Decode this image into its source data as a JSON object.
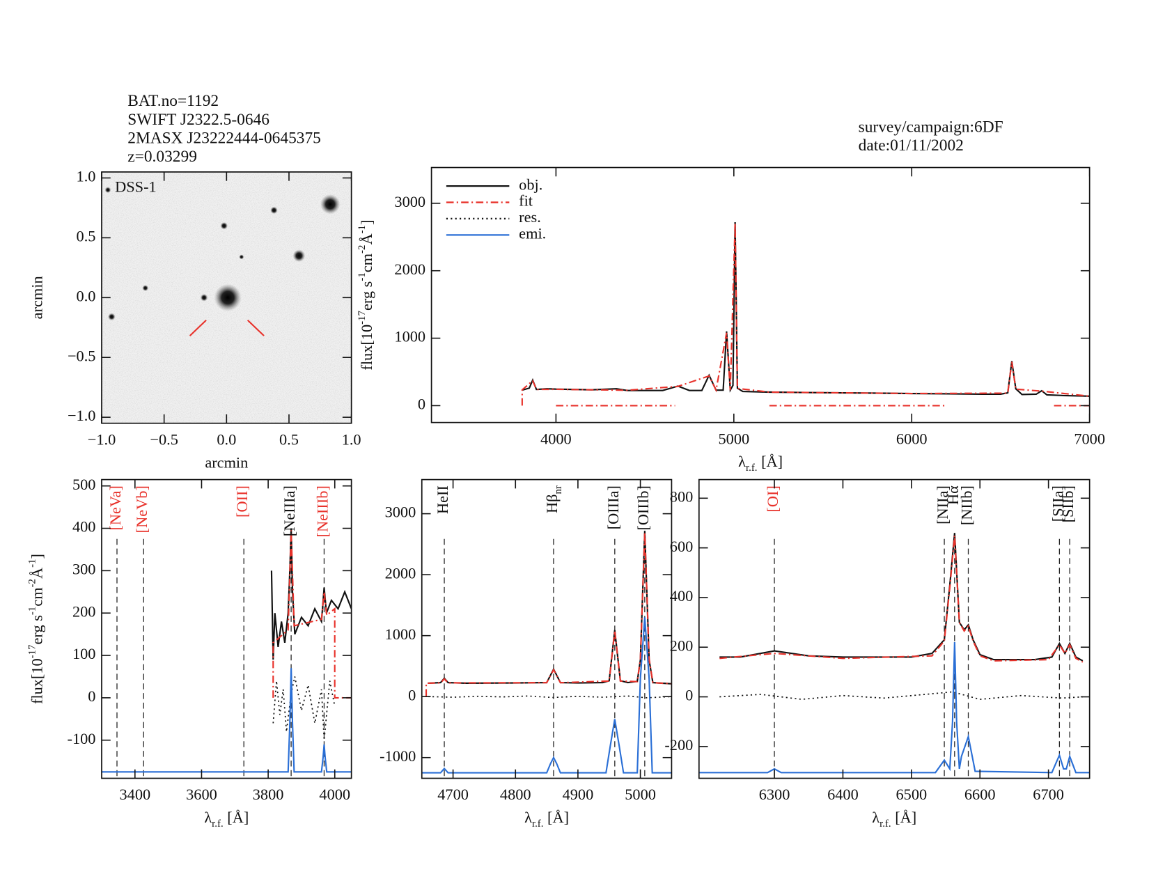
{
  "header": {
    "left": [
      "BAT.no=1192",
      "SWIFT J2322.5-0646",
      "2MASX J23222444-0645375",
      "z=0.03299"
    ],
    "right": [
      "survey/campaign:6DF",
      "date:01/11/2002"
    ]
  },
  "chart_data": [
    {
      "type": "image",
      "label": "DSS-1",
      "xlabel": "arcmin",
      "ylabel": "arcmin",
      "xlim": [
        -1,
        1
      ],
      "ylim": [
        -1.05,
        1.05
      ],
      "xticks": [
        {
          "value": -1,
          "label": "−1.0"
        },
        {
          "value": -0.5,
          "label": "−0.5"
        },
        {
          "value": 0,
          "label": "0.0"
        },
        0.5,
        {
          "value": 1,
          "label": "1.0"
        }
      ],
      "yticks": [
        {
          "value": -1,
          "label": "−1.0"
        },
        {
          "value": -0.5,
          "label": "−0.5"
        },
        {
          "value": 0,
          "label": "0.0"
        },
        0.5,
        {
          "value": 1,
          "label": "1.0"
        }
      ],
      "sources": [
        {
          "x": 0.01,
          "y": 0.0,
          "r": 0.11
        },
        {
          "x": 0.83,
          "y": 0.78,
          "r": 0.08
        },
        {
          "x": 0.58,
          "y": 0.35,
          "r": 0.05
        },
        {
          "x": -0.02,
          "y": 0.6,
          "r": 0.03
        },
        {
          "x": 0.38,
          "y": 0.73,
          "r": 0.03
        },
        {
          "x": 0.12,
          "y": 0.34,
          "r": 0.02
        },
        {
          "x": -0.65,
          "y": 0.08,
          "r": 0.025
        },
        {
          "x": -0.92,
          "y": -0.16,
          "r": 0.03
        },
        {
          "x": -0.95,
          "y": 0.9,
          "r": 0.025
        },
        {
          "x": -0.18,
          "y": 0.0,
          "r": 0.03
        }
      ]
    },
    {
      "type": "line",
      "xlabel_parts": [
        {
          "t": "λ"
        },
        {
          "t": "r.f.",
          "sub": true
        },
        {
          "t": " [Å]"
        }
      ],
      "ylabel_parts": [
        {
          "t": "flux[10"
        },
        {
          "t": "-17",
          "sup": true
        },
        {
          "t": "erg s"
        },
        {
          "t": "-1",
          "sup": true
        },
        {
          "t": "cm"
        },
        {
          "t": "-2",
          "sup": true
        },
        {
          "t": "Å"
        },
        {
          "t": "-1",
          "sup": true
        },
        {
          "t": "]"
        }
      ],
      "xlim": [
        3300,
        7000
      ],
      "xticks": [
        4000,
        5000,
        6000,
        7000
      ],
      "ylim": [
        -250,
        3530
      ],
      "yticks": [
        0,
        1000,
        2000,
        3000
      ],
      "legend_position": "top-left",
      "legend": [
        {
          "name": "obj.",
          "color": "#111111",
          "style": "solid"
        },
        {
          "name": "fit",
          "color": "#e8322b",
          "style": "dashdot"
        },
        {
          "name": "res.",
          "color": "#111111",
          "style": "dotted"
        },
        {
          "name": "emi.",
          "color": "#2a6fd6",
          "style": "solid"
        }
      ],
      "series": [
        {
          "color": "#111111",
          "style": "solid",
          "x": [
            3810,
            3850,
            3869,
            3890,
            3950,
            4000,
            4100,
            4200,
            4340,
            4400,
            4500,
            4600,
            4686,
            4750,
            4820,
            4861,
            4900,
            4940,
            4959,
            4980,
            4995,
            5007,
            5020,
            5050,
            5200,
            5400,
            5600,
            5800,
            6000,
            6200,
            6400,
            6500,
            6540,
            6563,
            6585,
            6620,
            6700,
            6731,
            6760,
            6850,
            7000
          ],
          "values": [
            230,
            260,
            380,
            240,
            250,
            245,
            240,
            235,
            250,
            225,
            225,
            225,
            290,
            225,
            225,
            450,
            230,
            230,
            1100,
            230,
            300,
            2720,
            260,
            210,
            200,
            195,
            190,
            185,
            180,
            175,
            170,
            170,
            190,
            660,
            250,
            165,
            170,
            220,
            160,
            150,
            140
          ]
        },
        {
          "color": "#e8322b",
          "style": "dashdot",
          "x": [
            3810,
            3810,
            3869,
            3890,
            4000,
            4400,
            4686,
            4861,
            4900,
            4959,
            4980,
            5007,
            5020,
            5200,
            6000,
            6540,
            6563,
            6585,
            6731,
            7000
          ],
          "values": [
            0,
            235,
            370,
            240,
            242,
            228,
            285,
            440,
            230,
            1080,
            230,
            2700,
            255,
            200,
            180,
            185,
            650,
            245,
            215,
            140
          ]
        }
      ],
      "windows": [
        {
          "x": [
            4000,
            4670
          ],
          "y": 0
        },
        {
          "x": [
            5200,
            6200
          ],
          "y": 0
        },
        {
          "x": [
            6800,
            7000
          ],
          "y": 0
        }
      ]
    },
    {
      "type": "line",
      "xlabel_parts": [
        {
          "t": "λ"
        },
        {
          "t": "r.f.",
          "sub": true
        },
        {
          "t": " [Å]"
        }
      ],
      "ylabel_parts": [
        {
          "t": "flux[10"
        },
        {
          "t": "-17",
          "sup": true
        },
        {
          "t": "erg s"
        },
        {
          "t": "-1",
          "sup": true
        },
        {
          "t": "cm"
        },
        {
          "t": "-2",
          "sup": true
        },
        {
          "t": "Å"
        },
        {
          "t": "-1",
          "sup": true
        },
        {
          "t": "]"
        }
      ],
      "xlim": [
        3300,
        4050
      ],
      "xticks": [
        3400,
        3600,
        3800,
        4000
      ],
      "ylim": [
        -190,
        515
      ],
      "yticks": [
        -100,
        0,
        100,
        200,
        300,
        400,
        500
      ],
      "series": [
        {
          "color": "#111111",
          "style": "solid",
          "x": [
            3810,
            3815,
            3820,
            3830,
            3840,
            3850,
            3860,
            3865,
            3869,
            3873,
            3880,
            3900,
            3920,
            3940,
            3960,
            3968,
            3975,
            3990,
            4010,
            4030,
            4050
          ],
          "values": [
            300,
            90,
            200,
            120,
            180,
            130,
            200,
            300,
            400,
            250,
            150,
            190,
            170,
            210,
            180,
            260,
            200,
            230,
            210,
            250,
            210
          ]
        },
        {
          "color": "#e8322b",
          "style": "dashdot",
          "x": [
            3815,
            3815,
            3860,
            3869,
            3878,
            3960,
            3968,
            3976,
            4000,
            4000,
            4050
          ],
          "values": [
            0,
            130,
            160,
            395,
            170,
            185,
            250,
            195,
            210,
            0,
            0
          ]
        },
        {
          "color": "#111111",
          "style": "dotted",
          "x": [
            3815,
            3825,
            3835,
            3845,
            3855,
            3869,
            3880,
            3900,
            3920,
            3940,
            3960,
            3968,
            3985,
            4000
          ],
          "values": [
            -60,
            40,
            -40,
            20,
            -80,
            10,
            50,
            -30,
            30,
            -60,
            20,
            -100,
            40,
            -20
          ]
        },
        {
          "color": "#2a6fd6",
          "style": "solid",
          "x": [
            3300,
            3860,
            3865,
            3869,
            3873,
            3878,
            3960,
            3965,
            3968,
            3971,
            3976,
            4050
          ],
          "values": [
            -175,
            -175,
            -60,
            70,
            -60,
            -175,
            -175,
            -140,
            -110,
            -140,
            -175,
            -175
          ]
        }
      ],
      "lines": [
        {
          "label": "[NeVa]",
          "x": 3346,
          "color": "#e8322b"
        },
        {
          "label": "[NeVb]",
          "x": 3426,
          "color": "#e8322b"
        },
        {
          "label": "[OII]",
          "x": 3727,
          "color": "#e8322b"
        },
        {
          "label": "[NeIIIa]",
          "x": 3869,
          "color": "#111111"
        },
        {
          "label": "[NeIIIb]",
          "x": 3968,
          "color": "#e8322b"
        }
      ]
    },
    {
      "type": "line",
      "xlabel_parts": [
        {
          "t": "λ"
        },
        {
          "t": "r.f.",
          "sub": true
        },
        {
          "t": " [Å]"
        }
      ],
      "xlim": [
        4650,
        5050
      ],
      "xticks": [
        4700,
        4800,
        4900,
        5000
      ],
      "ylim": [
        -1340,
        3560
      ],
      "yticks": [
        -1000,
        0,
        1000,
        2000,
        3000
      ],
      "series": [
        {
          "color": "#111111",
          "style": "solid",
          "x": [
            4660,
            4680,
            4686,
            4692,
            4720,
            4800,
            4850,
            4861,
            4872,
            4900,
            4940,
            4950,
            4959,
            4968,
            4980,
            4995,
            5000,
            5007,
            5014,
            5020,
            5050
          ],
          "values": [
            220,
            230,
            300,
            230,
            220,
            225,
            230,
            450,
            230,
            225,
            230,
            260,
            1090,
            260,
            230,
            250,
            600,
            2720,
            600,
            230,
            210
          ]
        },
        {
          "color": "#e8322b",
          "style": "dashdot",
          "x": [
            4657,
            4657,
            4680,
            4686,
            4692,
            4850,
            4861,
            4872,
            4950,
            4959,
            4968,
            4995,
            5000,
            5007,
            5014,
            5020,
            5050
          ],
          "values": [
            0,
            220,
            225,
            290,
            225,
            228,
            440,
            228,
            255,
            1080,
            255,
            245,
            620,
            2700,
            620,
            228,
            212
          ]
        },
        {
          "color": "#111111",
          "style": "dotted",
          "x": [
            4660,
            4700,
            4740,
            4780,
            4820,
            4860,
            4900,
            4940,
            4980,
            5010,
            5050
          ],
          "values": [
            0,
            -10,
            5,
            -5,
            10,
            -15,
            5,
            -10,
            10,
            -20,
            0
          ]
        },
        {
          "color": "#2a6fd6",
          "style": "solid",
          "x": [
            4650,
            4680,
            4686,
            4692,
            4850,
            4856,
            4861,
            4866,
            4872,
            4945,
            4952,
            4959,
            4966,
            4973,
            4995,
            5000,
            5007,
            5014,
            5019,
            5050
          ],
          "values": [
            -1250,
            -1250,
            -1180,
            -1250,
            -1250,
            -1100,
            -1000,
            -1100,
            -1250,
            -1250,
            -800,
            -370,
            -800,
            -1250,
            -1250,
            300,
            1300,
            300,
            -1250,
            -1250
          ]
        }
      ],
      "lines": [
        {
          "label": "HeII",
          "x": 4686,
          "color": "#111111"
        },
        {
          "label": "Hβ",
          "label_sub": "nr",
          "x": 4861,
          "color": "#111111"
        },
        {
          "label": "[OIIIa]",
          "x": 4959,
          "color": "#111111"
        },
        {
          "label": "[OIIIb]",
          "x": 5007,
          "color": "#111111"
        }
      ]
    },
    {
      "type": "line",
      "xlabel_parts": [
        {
          "t": "λ"
        },
        {
          "t": "r.f.",
          "sub": true
        },
        {
          "t": " [Å]"
        }
      ],
      "xlim": [
        6190,
        6760
      ],
      "xticks": [
        6300,
        6400,
        6500,
        6600,
        6700
      ],
      "ylim": [
        -328,
        875
      ],
      "yticks": [
        -200,
        0,
        200,
        400,
        600,
        800
      ],
      "series": [
        {
          "color": "#111111",
          "style": "solid",
          "x": [
            6220,
            6250,
            6300,
            6350,
            6400,
            6450,
            6500,
            6530,
            6548,
            6556,
            6563,
            6570,
            6577,
            6583,
            6590,
            6600,
            6620,
            6680,
            6705,
            6716,
            6724,
            6731,
            6740,
            6750
          ],
          "values": [
            160,
            160,
            185,
            165,
            160,
            160,
            160,
            175,
            230,
            450,
            660,
            300,
            270,
            290,
            230,
            170,
            150,
            150,
            160,
            215,
            175,
            215,
            160,
            145
          ]
        },
        {
          "color": "#e8322b",
          "style": "dashdot",
          "x": [
            6220,
            6300,
            6400,
            6530,
            6548,
            6556,
            6563,
            6570,
            6577,
            6583,
            6590,
            6600,
            6620,
            6700,
            6716,
            6724,
            6731,
            6740,
            6750
          ],
          "values": [
            155,
            175,
            155,
            165,
            225,
            440,
            650,
            300,
            265,
            285,
            225,
            165,
            145,
            150,
            210,
            175,
            210,
            155,
            140
          ]
        },
        {
          "color": "#111111",
          "style": "dotted",
          "x": [
            6220,
            6280,
            6340,
            6400,
            6460,
            6520,
            6560,
            6600,
            6660,
            6720,
            6750
          ],
          "values": [
            0,
            10,
            -10,
            5,
            -5,
            10,
            20,
            -10,
            5,
            -5,
            0
          ]
        },
        {
          "color": "#2a6fd6",
          "style": "solid",
          "x": [
            6190,
            6290,
            6300,
            6310,
            6535,
            6548,
            6556,
            6560,
            6563,
            6566,
            6570,
            6573,
            6583,
            6593,
            6705,
            6716,
            6722,
            6726,
            6731,
            6740,
            6760
          ],
          "values": [
            -305,
            -305,
            -290,
            -305,
            -305,
            -255,
            -290,
            -100,
            220,
            -100,
            -290,
            -240,
            -160,
            -300,
            -305,
            -235,
            -290,
            -290,
            -240,
            -305,
            -305
          ]
        }
      ],
      "lines": [
        {
          "label": "[OI]",
          "x": 6300,
          "color": "#e8322b"
        },
        {
          "label": "[NIIa]",
          "x": 6548,
          "color": "#111111"
        },
        {
          "label": "Hα",
          "x": 6563,
          "color": "#111111"
        },
        {
          "label": "[NIIb]",
          "x": 6583,
          "color": "#111111"
        },
        {
          "label": "[SIIa]",
          "x": 6716,
          "color": "#111111"
        },
        {
          "label": "[SIIb]",
          "x": 6731,
          "color": "#111111"
        }
      ]
    }
  ]
}
